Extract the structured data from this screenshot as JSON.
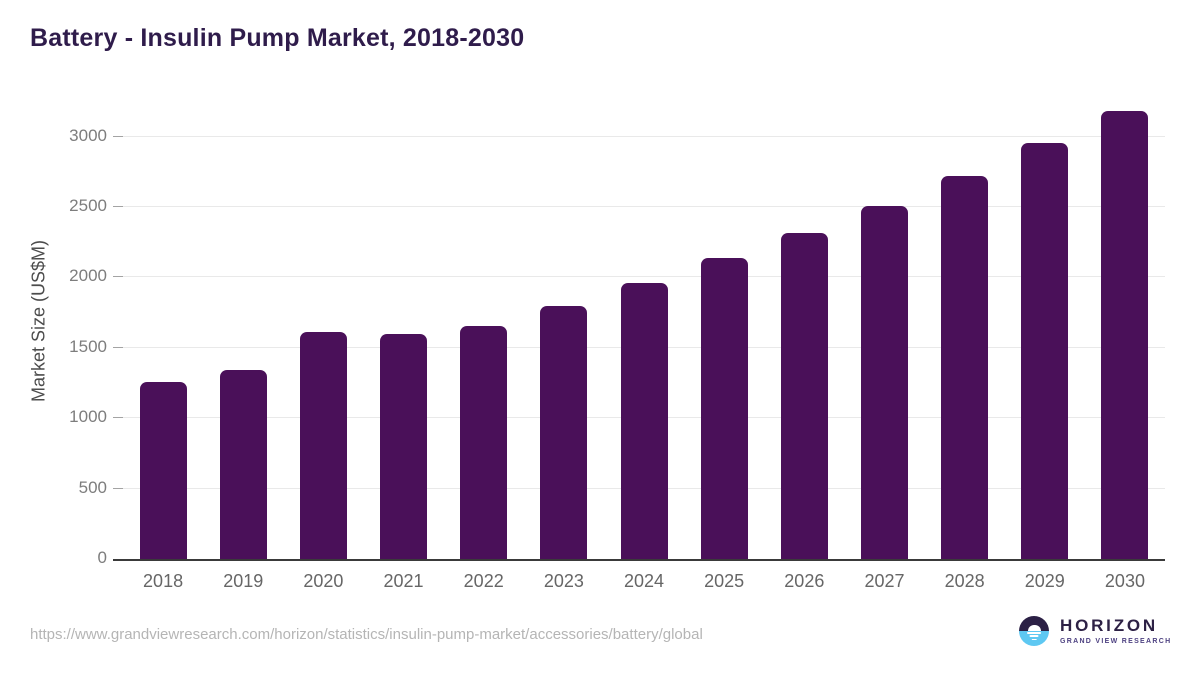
{
  "page": {
    "title": "Battery - Insulin Pump Market, 2018-2030"
  },
  "chart_data": {
    "type": "bar",
    "title": "Battery - Insulin Pump Market, 2018-2030",
    "categories": [
      "2018",
      "2019",
      "2020",
      "2021",
      "2022",
      "2023",
      "2024",
      "2025",
      "2026",
      "2027",
      "2028",
      "2029",
      "2030"
    ],
    "values": [
      1255,
      1345,
      1610,
      1595,
      1655,
      1795,
      1960,
      2140,
      2315,
      2510,
      2720,
      2955,
      3185
    ],
    "xlabel": "",
    "ylabel": "Market Size (US$M)",
    "ylim": [
      0,
      3300
    ],
    "yticks": [
      0,
      500,
      1000,
      1500,
      2000,
      2500,
      3000
    ],
    "grid": true,
    "legend": false,
    "bar_color": "#4a1059"
  },
  "footer": {
    "source_url": "https://www.grandviewresearch.com/horizon/statistics/insulin-pump-market/accessories/battery/global",
    "logo_name": "HORIZON",
    "logo_tagline": "GRAND VIEW RESEARCH"
  },
  "colors": {
    "bar": "#4a1059",
    "title_text": "#2f1c4b",
    "axis_line": "#3a3a3a",
    "gridline": "#e9e9e9",
    "tick_mark": "#a3a3a3",
    "y_tick_label": "#7d7d7d",
    "x_tick_label": "#666666",
    "url_text": "#b5b5b5",
    "logo_dark": "#2b2045",
    "logo_blue": "#5ec8f2"
  }
}
